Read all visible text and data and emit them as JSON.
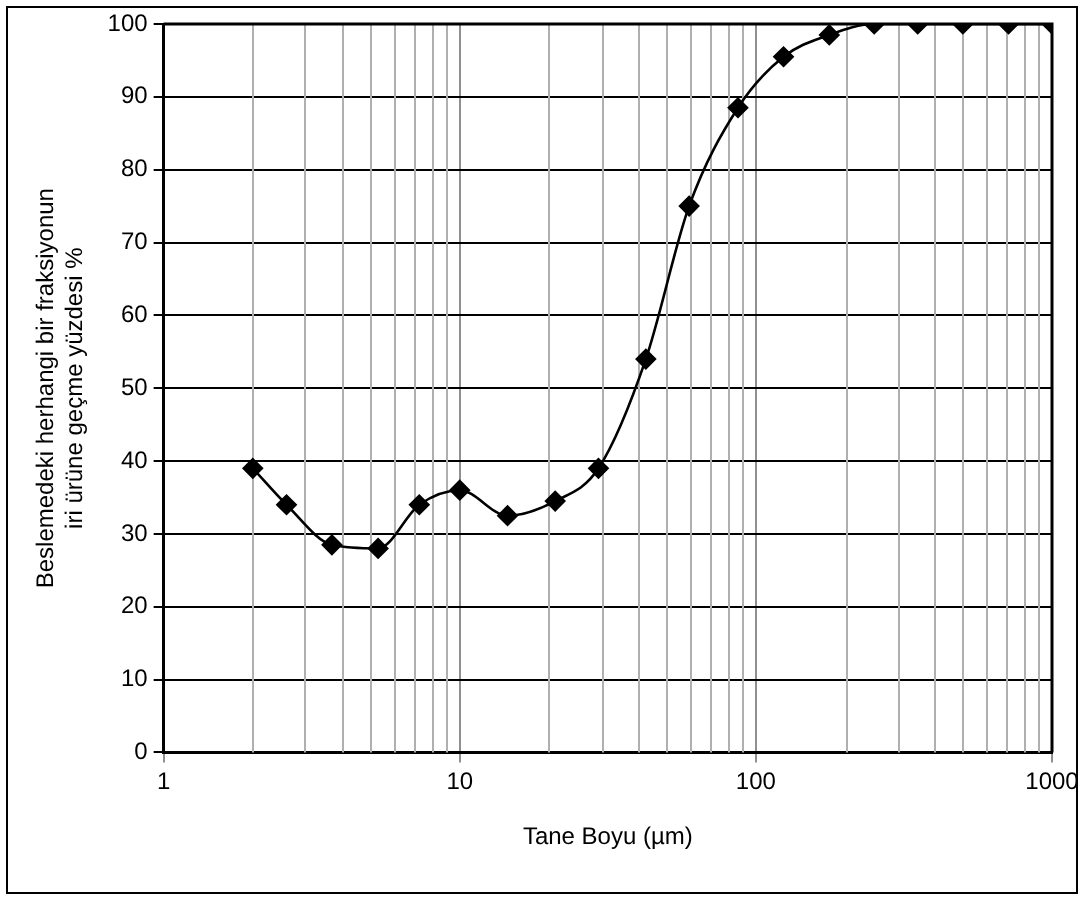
{
  "chart_data": {
    "type": "line",
    "xlabel": "Tane Boyu (µm)",
    "ylabel": "Beslemedeki herhangi bir fraksiyonun iri ürüne geçme yüzdesi %",
    "log": "x",
    "grid": true,
    "legend": false,
    "marker": "diamond",
    "line_style": "solid",
    "xlim": [
      1,
      1000
    ],
    "xticks": [
      1,
      10,
      100,
      1000
    ],
    "ylim": [
      0,
      100
    ],
    "yticks": [
      0,
      10,
      20,
      30,
      40,
      50,
      60,
      70,
      80,
      90,
      100
    ],
    "x": [
      2,
      2.6,
      3.7,
      5.3,
      7.3,
      10,
      14.5,
      21,
      29.4,
      42.5,
      59.5,
      87,
      124,
      177,
      251,
      352,
      500,
      713,
      1000
    ],
    "series": [
      {
        "color": "#000000",
        "values": [
          39,
          34,
          28.5,
          28,
          34,
          36,
          32.5,
          34.5,
          39,
          54,
          75,
          88.5,
          95.5,
          98.5,
          100,
          100,
          100,
          100,
          100
        ]
      }
    ]
  }
}
